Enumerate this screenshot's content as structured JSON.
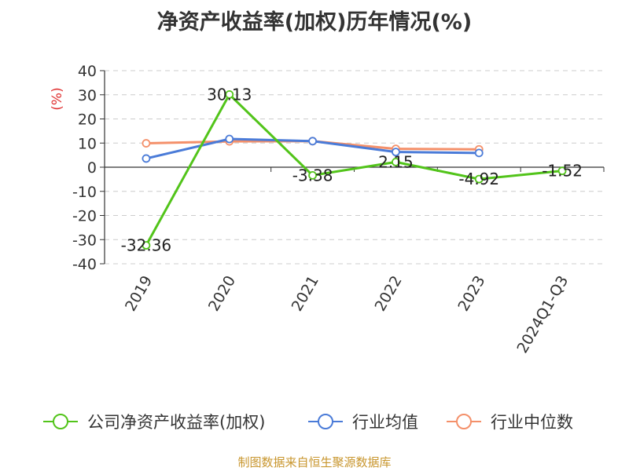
{
  "chart_data": {
    "type": "line",
    "title": "净资产收益率(加权)历年情况(%)",
    "ylabel": "(%)",
    "categories": [
      "2019",
      "2020",
      "2021",
      "2022",
      "2023",
      "2024Q1-Q3"
    ],
    "ylim": [
      -40,
      40
    ],
    "yticks": [
      40,
      30,
      20,
      10,
      0,
      -10,
      -20,
      -30,
      -40
    ],
    "grid": true,
    "legend_position": "bottom",
    "series": [
      {
        "name": "公司净资产收益率(加权)",
        "color": "#52c41a",
        "values": [
          -32.36,
          30.13,
          -3.38,
          2.15,
          -4.92,
          -1.52
        ],
        "labels": [
          "-32.36",
          "30.13",
          "-3.38",
          "2.15",
          "-4.92",
          "-1.52"
        ]
      },
      {
        "name": "行业均值",
        "color": "#4a7bd8",
        "values": [
          3.6,
          11.7,
          10.8,
          6.3,
          5.9,
          null
        ]
      },
      {
        "name": "行业中位数",
        "color": "#f4906a",
        "values": [
          9.9,
          10.7,
          10.8,
          7.6,
          7.4,
          null
        ]
      }
    ]
  },
  "source_text": "制图数据来自恒生聚源数据库"
}
